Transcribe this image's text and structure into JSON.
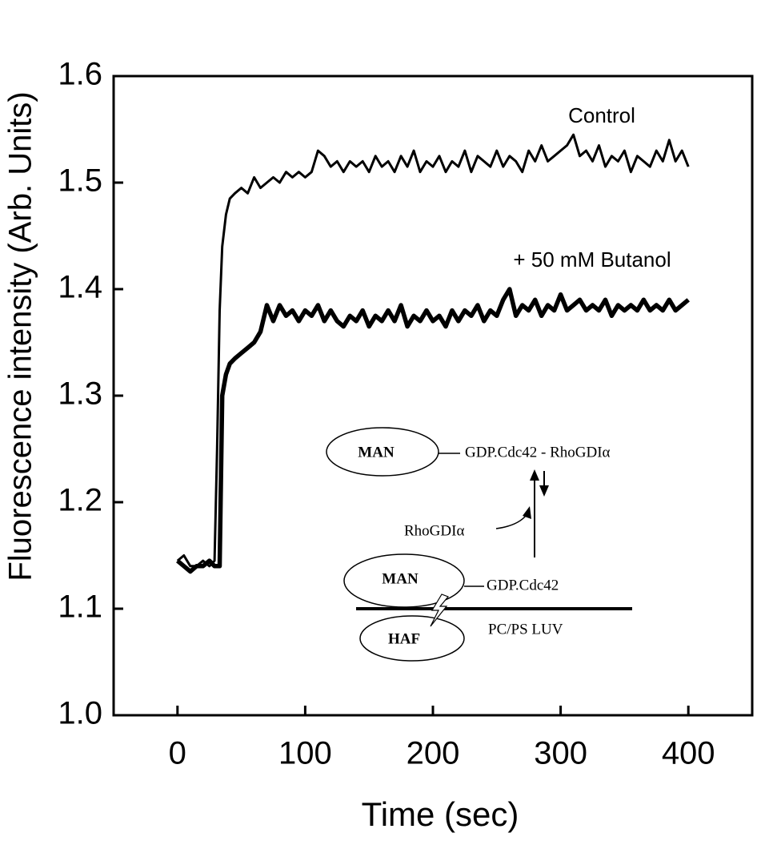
{
  "chart_data": {
    "type": "line",
    "xlabel": "Time (sec)",
    "ylabel": "Fluorescence intensity (Arb. Units)",
    "xlim": [
      -50,
      450
    ],
    "ylim": [
      1.0,
      1.6
    ],
    "xticks": [
      0,
      100,
      200,
      300,
      400
    ],
    "yticks": [
      {
        "value": 1.0,
        "label": "1.0"
      },
      1.1,
      1.2,
      1.3,
      1.4,
      1.5,
      1.6
    ],
    "x": [
      0,
      5,
      10,
      15,
      20,
      25,
      29,
      31,
      33,
      35,
      38,
      41,
      45,
      50,
      55,
      60,
      65,
      70,
      75,
      80,
      85,
      90,
      95,
      100,
      105,
      110,
      115,
      120,
      125,
      130,
      135,
      140,
      145,
      150,
      155,
      160,
      165,
      170,
      175,
      180,
      185,
      190,
      195,
      200,
      205,
      210,
      215,
      220,
      225,
      230,
      235,
      240,
      245,
      250,
      255,
      260,
      265,
      270,
      275,
      280,
      285,
      290,
      295,
      300,
      305,
      310,
      315,
      320,
      325,
      330,
      335,
      340,
      345,
      350,
      355,
      360,
      365,
      370,
      375,
      380,
      385,
      390,
      395,
      400
    ],
    "series": [
      {
        "name": "Control",
        "color": "#000000",
        "width": 3,
        "values": [
          1.145,
          1.15,
          1.14,
          1.14,
          1.145,
          1.14,
          1.145,
          1.25,
          1.38,
          1.44,
          1.47,
          1.485,
          1.49,
          1.495,
          1.49,
          1.505,
          1.495,
          1.5,
          1.505,
          1.5,
          1.51,
          1.505,
          1.51,
          1.505,
          1.51,
          1.53,
          1.525,
          1.515,
          1.52,
          1.51,
          1.52,
          1.515,
          1.52,
          1.51,
          1.525,
          1.515,
          1.52,
          1.51,
          1.525,
          1.515,
          1.53,
          1.51,
          1.52,
          1.515,
          1.525,
          1.51,
          1.52,
          1.515,
          1.53,
          1.51,
          1.525,
          1.52,
          1.515,
          1.53,
          1.515,
          1.525,
          1.52,
          1.51,
          1.53,
          1.52,
          1.535,
          1.52,
          1.525,
          1.53,
          1.535,
          1.545,
          1.525,
          1.53,
          1.52,
          1.535,
          1.515,
          1.525,
          1.52,
          1.53,
          1.51,
          1.525,
          1.52,
          1.515,
          1.53,
          1.52,
          1.54,
          1.52,
          1.53,
          1.515
        ]
      },
      {
        "name": "+ 50 mM Butanol",
        "color": "#000000",
        "width": 5.5,
        "values": [
          1.145,
          1.14,
          1.135,
          1.14,
          1.14,
          1.145,
          1.14,
          1.14,
          1.14,
          1.3,
          1.32,
          1.33,
          1.335,
          1.34,
          1.345,
          1.35,
          1.36,
          1.385,
          1.37,
          1.385,
          1.375,
          1.38,
          1.37,
          1.38,
          1.375,
          1.385,
          1.37,
          1.38,
          1.37,
          1.365,
          1.375,
          1.37,
          1.38,
          1.365,
          1.375,
          1.37,
          1.38,
          1.37,
          1.385,
          1.365,
          1.375,
          1.37,
          1.38,
          1.37,
          1.375,
          1.365,
          1.38,
          1.37,
          1.38,
          1.375,
          1.385,
          1.37,
          1.38,
          1.375,
          1.39,
          1.4,
          1.375,
          1.385,
          1.38,
          1.39,
          1.375,
          1.385,
          1.38,
          1.395,
          1.38,
          1.385,
          1.39,
          1.38,
          1.385,
          1.38,
          1.39,
          1.375,
          1.385,
          1.38,
          1.385,
          1.38,
          1.39,
          1.38,
          1.385,
          1.38,
          1.39,
          1.38,
          1.385,
          1.39
        ]
      }
    ],
    "inset": [
      "MAN",
      "GDP.Cdc42 - RhoGDIα",
      "RhoGDIα",
      "MAN",
      "GDP.Cdc42",
      "HAF",
      "PC/PS LUV"
    ]
  }
}
